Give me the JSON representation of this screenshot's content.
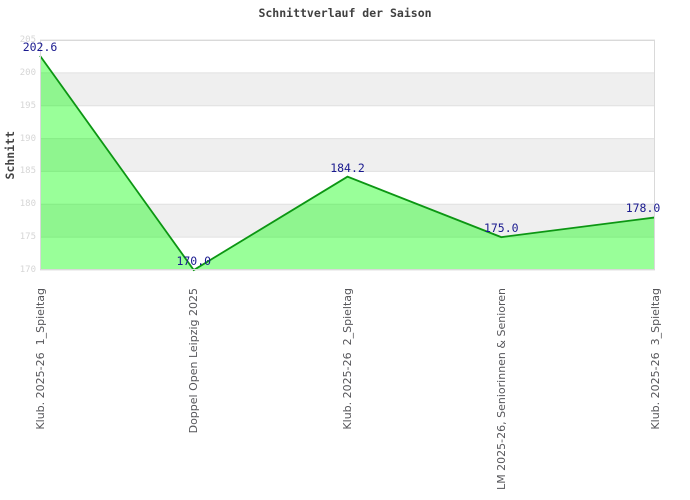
{
  "chart_data": {
    "type": "area",
    "title": "Schnittverlauf der Saison",
    "ylabel": "Schnitt",
    "xlabel": "",
    "categories": [
      "Klub. 2025-26  1_Spieltag",
      "Doppel Open Leipzig 2025",
      "Klub. 2025-26  2_Spieltag",
      "LM 2025-26, Seniorinnen & Senioren",
      "Klub. 2025-26  3_Spieltag"
    ],
    "values": [
      202.6,
      170.0,
      184.2,
      175.0,
      178.0
    ],
    "point_labels": [
      "202.6",
      "170.0",
      "184.2",
      "175.0",
      "178.0"
    ],
    "ylim": [
      170,
      205
    ],
    "yticks": [
      205,
      200,
      195,
      190,
      185,
      180,
      175,
      170
    ],
    "legend_position": "none",
    "grid": "horizontal-bands",
    "colors": {
      "line": "#0c9613",
      "fill": "#00ff00",
      "fill_opacity": 0.4,
      "annotation": "#1a1a8f",
      "band": "#efefef",
      "band_alt": "#ffffff",
      "gridline": "#e0e0e0",
      "border": "#d9d9d9",
      "y_tick_text": "#d6d6d6",
      "x_tick_text": "#56565a",
      "title_text": "#404040",
      "background": "#ffffff"
    }
  }
}
